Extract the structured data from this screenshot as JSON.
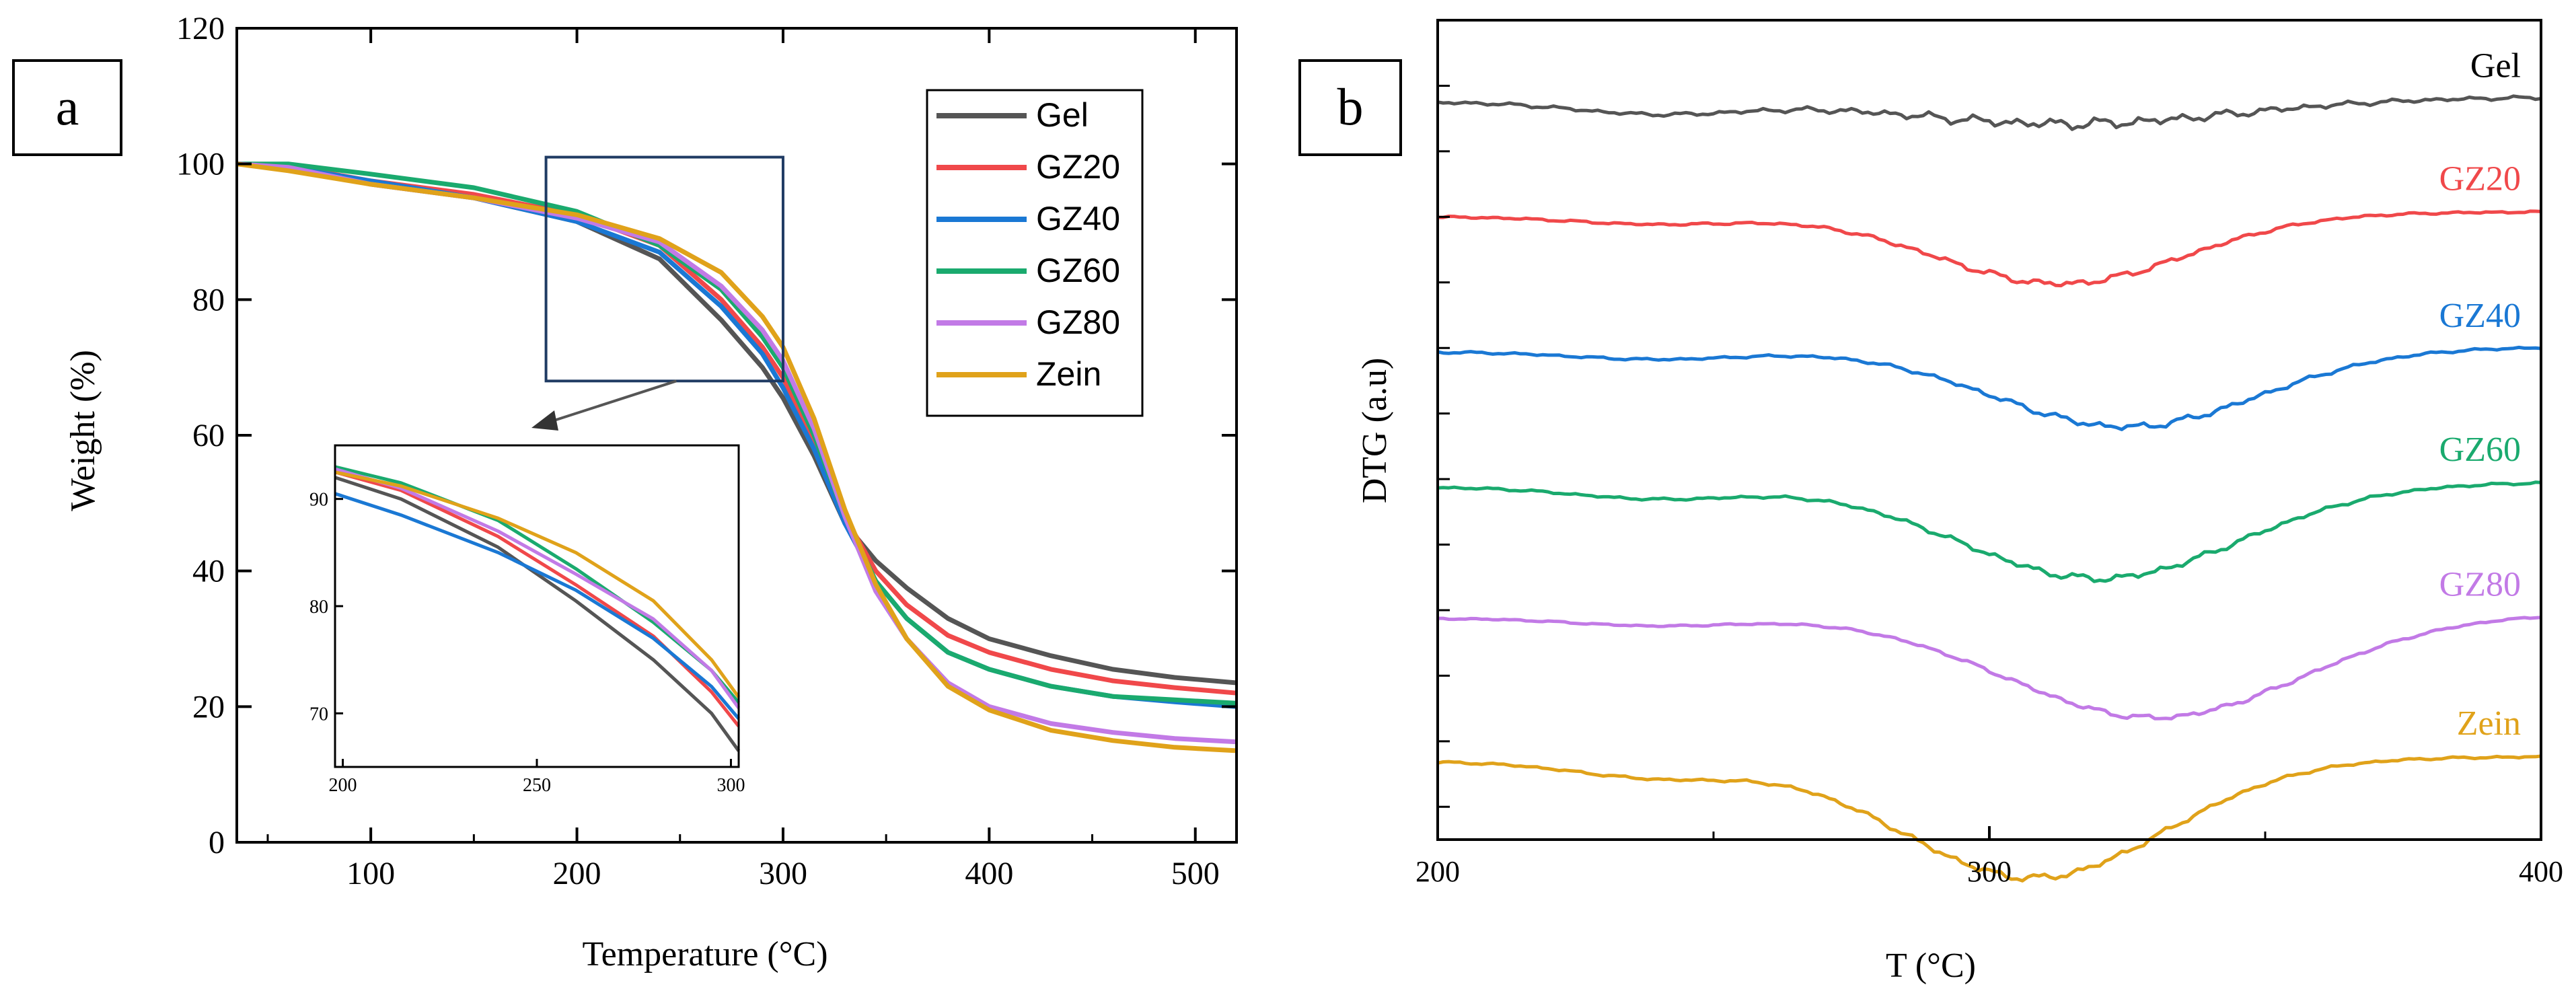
{
  "colors": {
    "Gel": "#555555",
    "GZ20": "#f0484a",
    "GZ40": "#1a78d4",
    "GZ60": "#1aaa6e",
    "GZ80": "#c27ae6",
    "Zein": "#e0a21a"
  },
  "chart_data": [
    {
      "panel": "a",
      "type": "line",
      "xlabel": "Temperature (°C)",
      "ylabel": "Weight (%)",
      "xlim": [
        35,
        520
      ],
      "ylim": [
        0,
        120
      ],
      "xticks": [
        100,
        200,
        300,
        400,
        500
      ],
      "yticks": [
        0,
        20,
        40,
        60,
        80,
        100,
        120
      ],
      "legend": [
        "Gel",
        "GZ20",
        "GZ40",
        "GZ60",
        "GZ80",
        "Zein"
      ],
      "legend_position": "top-right",
      "series": [
        {
          "name": "Gel",
          "points": [
            [
              35,
              100
            ],
            [
              60,
              99.7
            ],
            [
              100,
              97
            ],
            [
              150,
              95
            ],
            [
              200,
              91.5
            ],
            [
              240,
              86
            ],
            [
              270,
              77
            ],
            [
              290,
              70
            ],
            [
              300,
              65.5
            ],
            [
              315,
              57
            ],
            [
              330,
              47
            ],
            [
              345,
              41.5
            ],
            [
              360,
              37.5
            ],
            [
              380,
              33
            ],
            [
              400,
              30
            ],
            [
              430,
              27.5
            ],
            [
              460,
              25.5
            ],
            [
              490,
              24.3
            ],
            [
              520,
              23.5
            ]
          ]
        },
        {
          "name": "GZ20",
          "points": [
            [
              35,
              100
            ],
            [
              60,
              99.7
            ],
            [
              100,
              97.5
            ],
            [
              150,
              95.5
            ],
            [
              200,
              92.5
            ],
            [
              240,
              88
            ],
            [
              270,
              80
            ],
            [
              290,
              73
            ],
            [
              300,
              68.5
            ],
            [
              315,
              59
            ],
            [
              330,
              48
            ],
            [
              345,
              40
            ],
            [
              360,
              35
            ],
            [
              380,
              30.5
            ],
            [
              400,
              28
            ],
            [
              430,
              25.5
            ],
            [
              460,
              23.8
            ],
            [
              490,
              22.8
            ],
            [
              520,
              22
            ]
          ]
        },
        {
          "name": "GZ40",
          "points": [
            [
              35,
              100
            ],
            [
              60,
              99.5
            ],
            [
              100,
              97.5
            ],
            [
              150,
              95
            ],
            [
              200,
              91.5
            ],
            [
              240,
              87
            ],
            [
              270,
              79
            ],
            [
              290,
              72
            ],
            [
              300,
              67
            ],
            [
              315,
              58
            ],
            [
              330,
              47
            ],
            [
              345,
              38.5
            ],
            [
              360,
              33
            ],
            [
              380,
              28
            ],
            [
              400,
              25.5
            ],
            [
              430,
              23
            ],
            [
              460,
              21.5
            ],
            [
              490,
              20.7
            ],
            [
              520,
              20
            ]
          ]
        },
        {
          "name": "GZ60",
          "points": [
            [
              35,
              100
            ],
            [
              60,
              100
            ],
            [
              100,
              98.5
            ],
            [
              150,
              96.5
            ],
            [
              200,
              93
            ],
            [
              240,
              88
            ],
            [
              270,
              81.5
            ],
            [
              290,
              74.5
            ],
            [
              300,
              70
            ],
            [
              315,
              60
            ],
            [
              330,
              48
            ],
            [
              345,
              38.5
            ],
            [
              360,
              33
            ],
            [
              380,
              28
            ],
            [
              400,
              25.5
            ],
            [
              430,
              23
            ],
            [
              460,
              21.5
            ],
            [
              490,
              21
            ],
            [
              520,
              20.5
            ]
          ]
        },
        {
          "name": "GZ80",
          "points": [
            [
              35,
              100
            ],
            [
              60,
              99.5
            ],
            [
              100,
              97
            ],
            [
              150,
              95
            ],
            [
              200,
              92
            ],
            [
              240,
              88.5
            ],
            [
              270,
              82
            ],
            [
              290,
              75.5
            ],
            [
              300,
              71
            ],
            [
              315,
              61
            ],
            [
              330,
              48
            ],
            [
              345,
              37
            ],
            [
              360,
              30
            ],
            [
              380,
              23.5
            ],
            [
              400,
              20
            ],
            [
              430,
              17.5
            ],
            [
              460,
              16.2
            ],
            [
              490,
              15.3
            ],
            [
              520,
              14.8
            ]
          ]
        },
        {
          "name": "Zein",
          "points": [
            [
              35,
              100
            ],
            [
              60,
              99
            ],
            [
              100,
              97
            ],
            [
              150,
              95
            ],
            [
              200,
              92.5
            ],
            [
              240,
              89
            ],
            [
              270,
              84
            ],
            [
              290,
              77.5
            ],
            [
              300,
              73
            ],
            [
              315,
              62.5
            ],
            [
              330,
              49
            ],
            [
              345,
              38
            ],
            [
              360,
              30
            ],
            [
              380,
              23
            ],
            [
              400,
              19.5
            ],
            [
              430,
              16.5
            ],
            [
              460,
              15
            ],
            [
              490,
              14
            ],
            [
              520,
              13.5
            ]
          ]
        }
      ],
      "zoom_box": {
        "x": [
          185,
          300
        ],
        "y": [
          68,
          101
        ]
      },
      "inset": {
        "xlim": [
          198,
          302
        ],
        "ylim": [
          65,
          95
        ],
        "xticks": [
          200,
          250,
          300
        ],
        "yticks": [
          70,
          80,
          90
        ],
        "series": [
          {
            "name": "Gel",
            "points": [
              [
                198,
                92
              ],
              [
                215,
                90
              ],
              [
                240,
                85.5
              ],
              [
                260,
                80.5
              ],
              [
                280,
                75
              ],
              [
                295,
                70
              ],
              [
                302,
                66.5
              ]
            ]
          },
          {
            "name": "GZ20",
            "points": [
              [
                198,
                92.5
              ],
              [
                215,
                90.8
              ],
              [
                240,
                86.5
              ],
              [
                260,
                82
              ],
              [
                280,
                77.2
              ],
              [
                295,
                72
              ],
              [
                302,
                68.8
              ]
            ]
          },
          {
            "name": "GZ40",
            "points": [
              [
                198,
                90.5
              ],
              [
                215,
                88.5
              ],
              [
                240,
                85
              ],
              [
                260,
                81.5
              ],
              [
                280,
                77
              ],
              [
                295,
                72.5
              ],
              [
                302,
                69.5
              ]
            ]
          },
          {
            "name": "GZ60",
            "points": [
              [
                198,
                93
              ],
              [
                215,
                91.5
              ],
              [
                240,
                88
              ],
              [
                260,
                83.5
              ],
              [
                280,
                78.5
              ],
              [
                295,
                74
              ],
              [
                302,
                71
              ]
            ]
          },
          {
            "name": "GZ80",
            "points": [
              [
                198,
                92.8
              ],
              [
                215,
                91
              ],
              [
                240,
                87
              ],
              [
                260,
                83
              ],
              [
                280,
                78.8
              ],
              [
                295,
                74
              ],
              [
                302,
                70.5
              ]
            ]
          },
          {
            "name": "Zein",
            "points": [
              [
                198,
                92.5
              ],
              [
                215,
                91.2
              ],
              [
                240,
                88.2
              ],
              [
                260,
                85
              ],
              [
                280,
                80.5
              ],
              [
                295,
                75
              ],
              [
                302,
                71.5
              ]
            ]
          }
        ]
      }
    },
    {
      "panel": "b",
      "type": "line",
      "xlabel": "T (°C)",
      "ylabel": "DTG (a.u)",
      "xlim": [
        200,
        400
      ],
      "xticks": [
        200,
        300,
        400
      ],
      "series": [
        {
          "name": "Gel",
          "label": "Gel",
          "baseline": 0.9,
          "dip_center": 315,
          "dip_width": 42,
          "dip_depth": 0.03,
          "noise": 0.006,
          "shoulder": 0.015
        },
        {
          "name": "GZ20",
          "label": "GZ20",
          "baseline": 0.76,
          "dip_center": 313,
          "dip_width": 32,
          "dip_depth": 0.085,
          "noise": 0.004,
          "shoulder": 0.01
        },
        {
          "name": "GZ40",
          "label": "GZ40",
          "baseline": 0.595,
          "dip_center": 325,
          "dip_width": 34,
          "dip_depth": 0.095,
          "noise": 0.004,
          "shoulder": 0.01
        },
        {
          "name": "GZ60",
          "label": "GZ60",
          "baseline": 0.43,
          "dip_center": 320,
          "dip_width": 36,
          "dip_depth": 0.115,
          "noise": 0.004,
          "shoulder": 0.015
        },
        {
          "name": "GZ80",
          "label": "GZ80",
          "baseline": 0.27,
          "dip_center": 330,
          "dip_width": 38,
          "dip_depth": 0.125,
          "noise": 0.003,
          "shoulder": 0.01
        },
        {
          "name": "Zein",
          "label": "Zein",
          "baseline": 0.095,
          "dip_center": 308,
          "dip_width": 34,
          "dip_depth": 0.145,
          "noise": 0.004,
          "shoulder": 0.02
        }
      ]
    }
  ],
  "panel_labels": {
    "a": "a",
    "b": "b"
  }
}
